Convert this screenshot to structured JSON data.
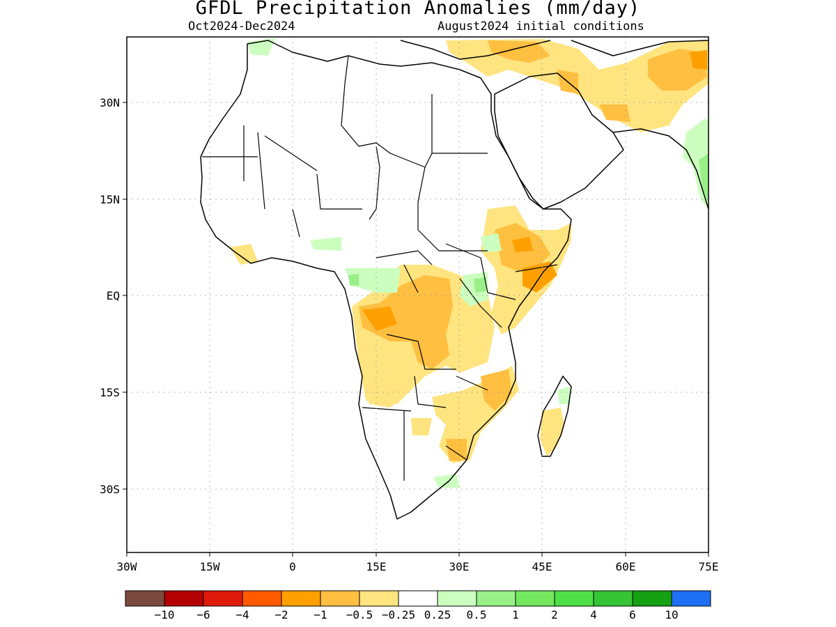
{
  "map": {
    "title": "GFDL Precipitation Anomalies (mm/day)",
    "period": "Oct2024-Dec2024",
    "init": "August2024 initial conditions"
  },
  "axes": {
    "lat_labels": [
      "30N",
      "15N",
      "EQ",
      "15S",
      "30S"
    ],
    "lon_labels": [
      "30W",
      "15W",
      "0",
      "15E",
      "30E",
      "45E",
      "60E",
      "75E"
    ]
  },
  "legend": {
    "colors": [
      "#7b4a3e",
      "#b30000",
      "#e01a0a",
      "#ff5a00",
      "#ffa000",
      "#ffbf40",
      "#ffe480",
      "#ffffff",
      "#ccffbf",
      "#99f089",
      "#73e85f",
      "#4fe048",
      "#35c435",
      "#13a013",
      "#1f6ff2"
    ],
    "labels": [
      "-10",
      "-6",
      "-4",
      "-2",
      "-1",
      "-0.5",
      "-0.25",
      "0.25",
      "0.5",
      "1",
      "2",
      "4",
      "6",
      "10"
    ]
  }
}
